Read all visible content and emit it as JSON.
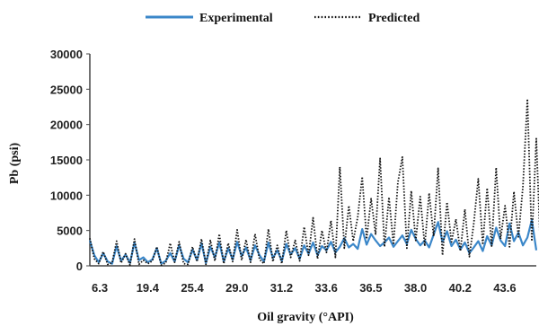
{
  "chart_data": {
    "type": "line",
    "xlabel": "Oil gravity (°API)",
    "ylabel": "Pb (psi)",
    "ylim": [
      0,
      30000
    ],
    "y_ticks": [
      "0",
      "5000",
      "10000",
      "15000",
      "20000",
      "25000",
      "30000"
    ],
    "x_tick_labels": [
      "6.3",
      "19.4",
      "25.4",
      "29.0",
      "31.2",
      "33.6",
      "36.5",
      "38.0",
      "40.2",
      "43.6"
    ],
    "legend_position": "top",
    "grid": false,
    "x_index_range": [
      0,
      100
    ],
    "series": [
      {
        "name": "Experimental",
        "color": "#3b87c9",
        "style": "solid",
        "values": [
          3600,
          1500,
          500,
          1800,
          600,
          300,
          2800,
          700,
          1600,
          400,
          3300,
          800,
          1200,
          500,
          900,
          2500,
          300,
          700,
          1800,
          600,
          2900,
          1000,
          500,
          2300,
          800,
          3200,
          400,
          2700,
          1200,
          3300,
          600,
          2500,
          900,
          3400,
          1400,
          2600,
          800,
          2900,
          1500,
          600,
          3300,
          1100,
          2200,
          700,
          3100,
          1600,
          2500,
          1000,
          2900,
          1700,
          3300,
          1500,
          2800,
          2200,
          3400,
          1900,
          2700,
          3900,
          2600,
          3100,
          2400,
          5200,
          3000,
          4500,
          3600,
          2800,
          3300,
          4000,
          2700,
          3500,
          4300,
          3100,
          5100,
          3800,
          2900,
          3600,
          2600,
          4400,
          6200,
          3400,
          4900,
          2800,
          3700,
          2300,
          3300,
          1800,
          2600,
          3500,
          2100,
          4200,
          2900,
          5400,
          3600,
          2800,
          6000,
          3500,
          4700,
          2900,
          4000,
          6500,
          2200
        ]
      },
      {
        "name": "Predicted",
        "color": "#111111",
        "style": "dotted",
        "values": [
          3900,
          1000,
          300,
          2000,
          200,
          400,
          3500,
          400,
          1700,
          100,
          3800,
          200,
          800,
          300,
          700,
          2700,
          100,
          400,
          3200,
          500,
          3400,
          300,
          200,
          2700,
          600,
          3800,
          200,
          3600,
          700,
          4500,
          300,
          3200,
          600,
          5100,
          800,
          3700,
          500,
          4500,
          900,
          300,
          5200,
          600,
          2900,
          300,
          5000,
          1200,
          3600,
          700,
          5500,
          1500,
          6800,
          1000,
          5000,
          1900,
          6400,
          1200,
          14000,
          2500,
          8500,
          3500,
          6900,
          12600,
          3800,
          9500,
          4500,
          15200,
          2700,
          9700,
          3000,
          11800,
          15400,
          2500,
          10600,
          3600,
          9800,
          2800,
          10300,
          4200,
          13800,
          1500,
          9000,
          3400,
          6600,
          2100,
          8000,
          1300,
          6000,
          12300,
          3000,
          11000,
          2800,
          13900,
          3800,
          8500,
          2700,
          10500,
          4100,
          11200,
          23600,
          3500,
          18000,
          1200
        ]
      }
    ]
  }
}
